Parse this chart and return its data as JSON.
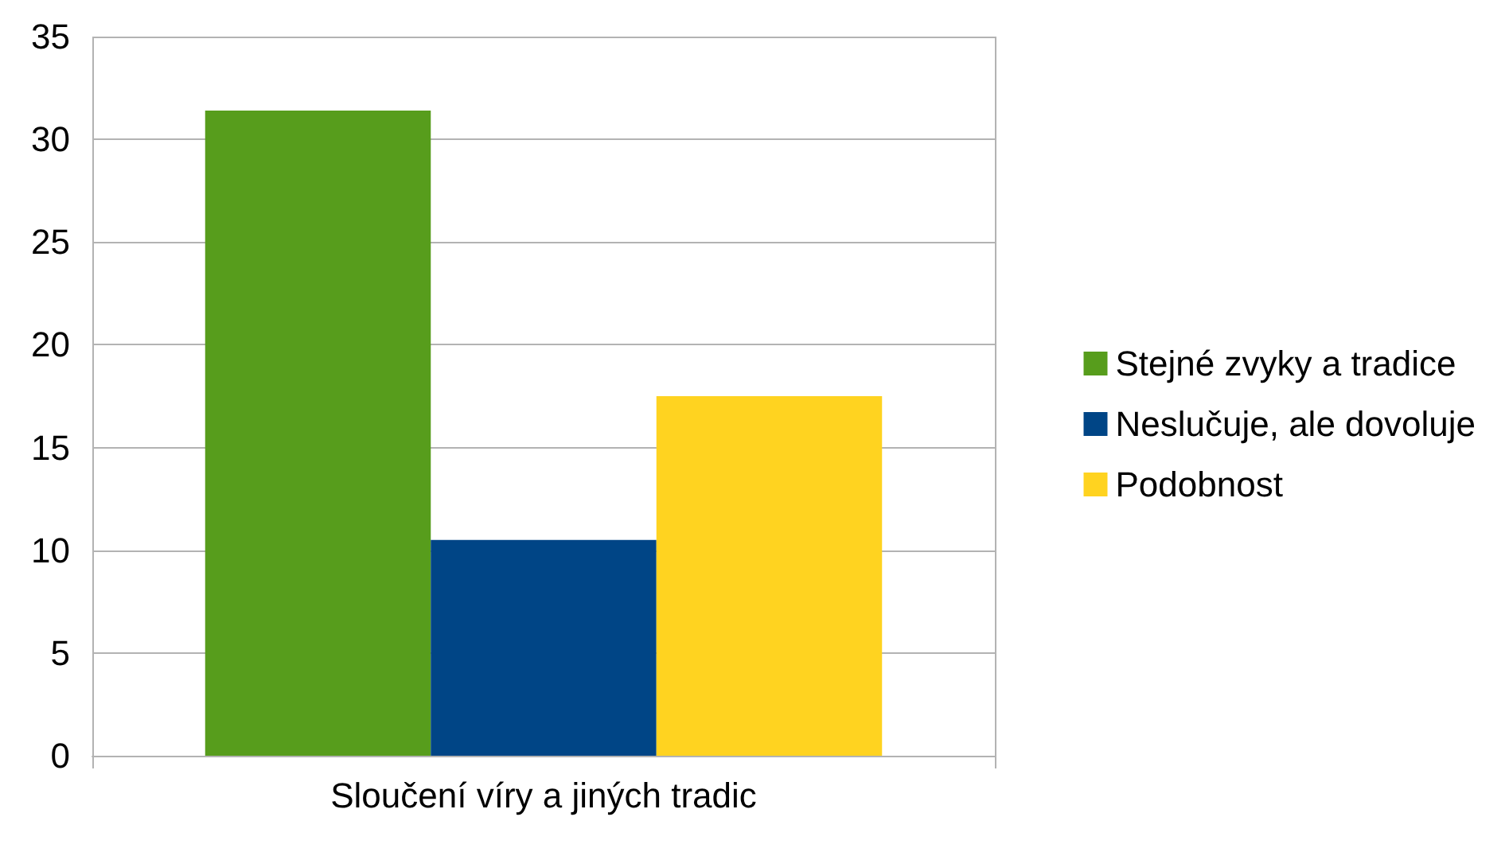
{
  "chart_data": {
    "type": "bar",
    "categories": [
      "Sloučení víry a jiných tradic"
    ],
    "series": [
      {
        "name": "Stejné zvyky a tradice",
        "color": "#579d1c",
        "values": [
          31.4
        ]
      },
      {
        "name": "Neslučuje, ale dovoluje",
        "color": "#004586",
        "values": [
          10.5
        ]
      },
      {
        "name": "Podobnost",
        "color": "#ffd320",
        "values": [
          17.5
        ]
      }
    ],
    "ylim": [
      0,
      35
    ],
    "yticks": [
      0,
      5,
      10,
      15,
      20,
      25,
      30,
      35
    ],
    "grid": true,
    "legend": "right"
  }
}
